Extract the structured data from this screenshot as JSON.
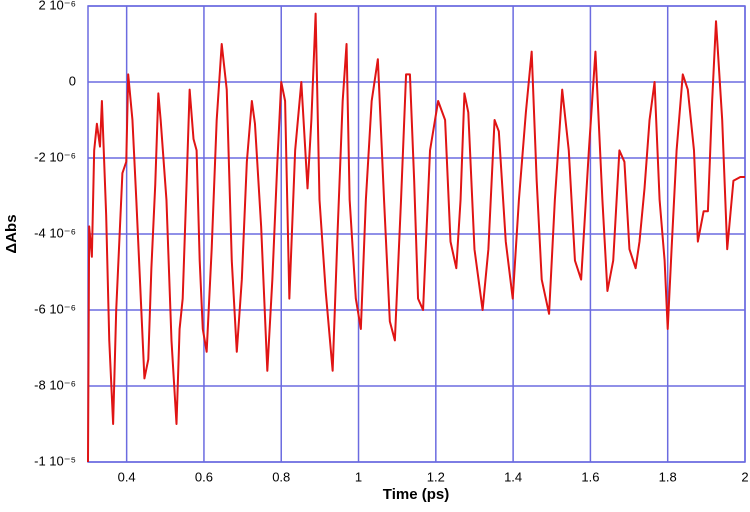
{
  "chart_data": {
    "type": "line",
    "x_label": "Time (ps)",
    "y_label": "ΔAbs",
    "color": "#e01414",
    "grid_color": "#6b6be0",
    "grid": true,
    "xlim": [
      0.3,
      2
    ],
    "xticks": [
      0.4,
      0.6,
      0.8,
      1,
      1.2,
      1.4,
      1.6,
      1.8,
      2
    ],
    "ylim": [
      -1e-05,
      2e-06
    ],
    "yticks": [
      {
        "value": -1e-05,
        "label": "-1 10⁻⁵"
      },
      {
        "value": -8e-06,
        "label": "-8 10⁻⁶"
      },
      {
        "value": -6e-06,
        "label": "-6 10⁻⁶"
      },
      {
        "value": -4e-06,
        "label": "-4 10⁻⁶"
      },
      {
        "value": -2e-06,
        "label": "-2 10⁻⁶"
      },
      0,
      {
        "value": 2e-06,
        "label": "2 10⁻⁶"
      }
    ],
    "x": [
      0.3,
      0.303,
      0.31,
      0.316,
      0.323,
      0.331,
      0.336,
      0.347,
      0.355,
      0.365,
      0.373,
      0.389,
      0.399,
      0.404,
      0.415,
      0.425,
      0.446,
      0.456,
      0.464,
      0.474,
      0.482,
      0.488,
      0.503,
      0.516,
      0.529,
      0.537,
      0.545,
      0.555,
      0.563,
      0.573,
      0.581,
      0.589,
      0.597,
      0.607,
      0.62,
      0.633,
      0.646,
      0.659,
      0.672,
      0.685,
      0.698,
      0.711,
      0.724,
      0.732,
      0.748,
      0.764,
      0.777,
      0.79,
      0.8,
      0.81,
      0.821,
      0.836,
      0.852,
      0.868,
      0.878,
      0.889,
      0.899,
      0.915,
      0.933,
      0.946,
      0.959,
      0.969,
      0.977,
      0.993,
      1.006,
      1.019,
      1.034,
      1.05,
      1.066,
      1.081,
      1.094,
      1.11,
      1.123,
      1.133,
      1.144,
      1.154,
      1.167,
      1.185,
      1.206,
      1.224,
      1.238,
      1.253,
      1.264,
      1.274,
      1.284,
      1.3,
      1.321,
      1.336,
      1.352,
      1.363,
      1.381,
      1.399,
      1.415,
      1.433,
      1.448,
      1.461,
      1.474,
      1.493,
      1.508,
      1.527,
      1.544,
      1.56,
      1.576,
      1.596,
      1.613,
      1.631,
      1.644,
      1.659,
      1.675,
      1.688,
      1.701,
      1.717,
      1.727,
      1.74,
      1.753,
      1.766,
      1.779,
      1.792,
      1.8,
      1.81,
      1.823,
      1.839,
      1.852,
      1.868,
      1.878,
      1.893,
      1.904,
      1.915,
      1.925,
      1.941,
      1.954,
      1.97,
      1.988,
      2.0
    ],
    "values": [
      -1e-05,
      -3.8e-06,
      -4.6e-06,
      -1.8e-06,
      -1.1e-06,
      -1.7e-06,
      -5e-07,
      -3.5e-06,
      -6.8e-06,
      -9e-06,
      -6e-06,
      -2.4e-06,
      -2.1e-06,
      2e-07,
      -1e-06,
      -3.1e-06,
      -7.8e-06,
      -7.3e-06,
      -4.9e-06,
      -2.7e-06,
      -3e-07,
      -1e-06,
      -3.1e-06,
      -6.8e-06,
      -9e-06,
      -6.5e-06,
      -5.7e-06,
      -2.7e-06,
      -2e-07,
      -1.5e-06,
      -1.8e-06,
      -4.7e-06,
      -6.5e-06,
      -7.1e-06,
      -4.4e-06,
      -1e-06,
      1e-06,
      -2e-07,
      -4.7e-06,
      -7.1e-06,
      -5.2e-06,
      -2.1e-06,
      -5e-07,
      -1.1e-06,
      -3.8e-06,
      -7.6e-06,
      -5.2e-06,
      -2.1e-06,
      0,
      -5e-07,
      -5.7e-06,
      -1.8e-06,
      0,
      -2.8e-06,
      -1e-06,
      1.8e-06,
      -3.1e-06,
      -5.5e-06,
      -7.6e-06,
      -3.9e-06,
      -5e-07,
      1e-06,
      -3.1e-06,
      -5.7e-06,
      -6.5e-06,
      -3.1e-06,
      -5e-07,
      6e-07,
      -3.1e-06,
      -6.3e-06,
      -6.8e-06,
      -3.1e-06,
      2e-07,
      2e-07,
      -2.6e-06,
      -5.7e-06,
      -6e-06,
      -1.8e-06,
      -5e-07,
      -1e-06,
      -4.2e-06,
      -4.9e-06,
      -3.1e-06,
      -3e-07,
      -8e-07,
      -4.4e-06,
      -6e-06,
      -4.4e-06,
      -1e-06,
      -1.3e-06,
      -4.2e-06,
      -5.7e-06,
      -3.1e-06,
      -8e-07,
      8e-07,
      -2.6e-06,
      -5.2e-06,
      -6.1e-06,
      -3.1e-06,
      -2e-07,
      -1.8e-06,
      -4.7e-06,
      -5.2e-06,
      -1.8e-06,
      8e-07,
      -3.1e-06,
      -5.5e-06,
      -4.7e-06,
      -1.8e-06,
      -2.1e-06,
      -4.4e-06,
      -4.9e-06,
      -4.2e-06,
      -2.8e-06,
      -1e-06,
      0,
      -3.1e-06,
      -4.7e-06,
      -6.5e-06,
      -4.4e-06,
      -1.8e-06,
      2e-07,
      -2e-07,
      -1.8e-06,
      -4.2e-06,
      -3.4e-06,
      -3.4e-06,
      -5e-07,
      1.6e-06,
      -1e-06,
      -4.4e-06,
      -2.6e-06,
      -2.5e-06,
      -2.5e-06
    ]
  }
}
